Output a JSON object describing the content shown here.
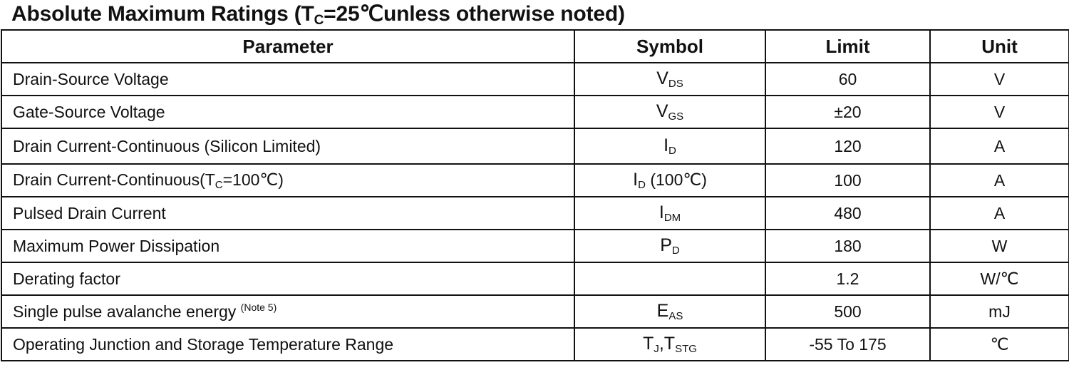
{
  "title": {
    "prefix": "Absolute Maximum Ratings (T",
    "sub": "C",
    "suffix": "=25℃unless otherwise noted)"
  },
  "columns": [
    "Parameter",
    "Symbol",
    "Limit",
    "Unit"
  ],
  "rows": [
    {
      "parameter": [
        {
          "t": "Drain-Source Voltage"
        }
      ],
      "symbol": [
        {
          "t": "V",
          "big": true
        },
        {
          "t": "DS",
          "sub": true
        }
      ],
      "limit": "60",
      "unit": "V"
    },
    {
      "parameter": [
        {
          "t": "Gate-Source Voltage"
        }
      ],
      "symbol": [
        {
          "t": "V",
          "big": true
        },
        {
          "t": "GS",
          "sub": true
        }
      ],
      "limit": "±20",
      "unit": "V"
    },
    {
      "parameter": [
        {
          "t": "Drain Current-Continuous (Silicon Limited)"
        }
      ],
      "symbol": [
        {
          "t": "I",
          "big": true
        },
        {
          "t": "D",
          "sub": true
        }
      ],
      "limit": "120",
      "unit": "A"
    },
    {
      "parameter": [
        {
          "t": "Drain Current-Continuous(T"
        },
        {
          "t": "C",
          "sub": true
        },
        {
          "t": "=100℃)"
        }
      ],
      "symbol": [
        {
          "t": "I",
          "big": true
        },
        {
          "t": "D",
          "sub": true
        },
        {
          "t": " (100℃)"
        }
      ],
      "limit": "100",
      "unit": "A"
    },
    {
      "parameter": [
        {
          "t": "Pulsed Drain Current"
        }
      ],
      "symbol": [
        {
          "t": "I",
          "big": true
        },
        {
          "t": "DM",
          "sub": true
        }
      ],
      "limit": "480",
      "unit": "A"
    },
    {
      "parameter": [
        {
          "t": "Maximum Power Dissipation"
        }
      ],
      "symbol": [
        {
          "t": "P",
          "big": true
        },
        {
          "t": "D",
          "sub": true
        }
      ],
      "limit": "180",
      "unit": "W"
    },
    {
      "parameter": [
        {
          "t": "Derating factor"
        }
      ],
      "symbol": [],
      "limit": "1.2",
      "unit": "W/℃"
    },
    {
      "parameter": [
        {
          "t": "Single pulse avalanche energy "
        },
        {
          "t": "(Note 5)",
          "sup": true
        }
      ],
      "symbol": [
        {
          "t": "E",
          "big": true
        },
        {
          "t": "AS",
          "sub": true
        }
      ],
      "limit": "500",
      "unit": "mJ"
    },
    {
      "parameter": [
        {
          "t": "Operating Junction and Storage Temperature Range"
        }
      ],
      "symbol": [
        {
          "t": "T",
          "big": true
        },
        {
          "t": "J",
          "sub": true
        },
        {
          "t": ",T",
          "big": true
        },
        {
          "t": "STG",
          "sub": true
        }
      ],
      "limit": "-55 To 175",
      "unit": "℃"
    }
  ]
}
